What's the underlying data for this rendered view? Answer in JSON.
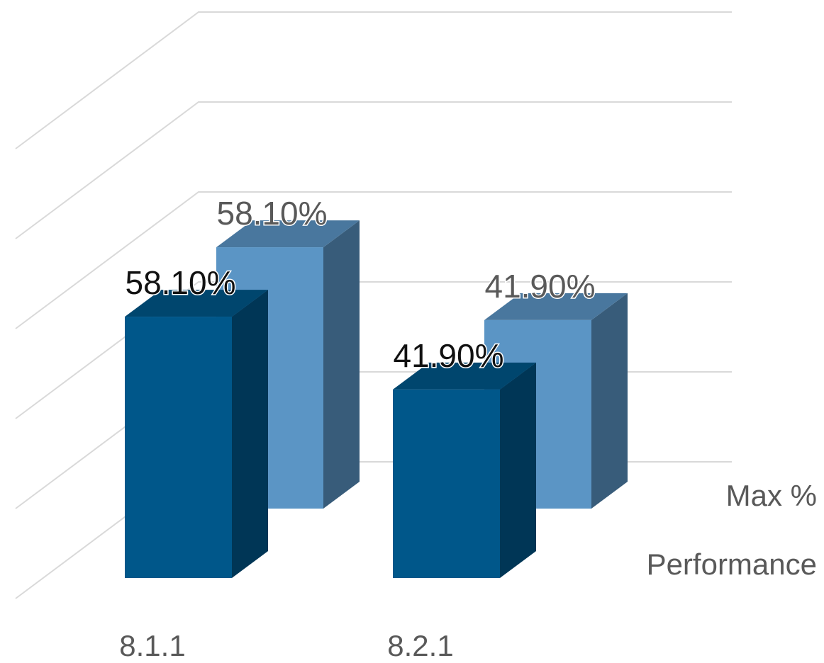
{
  "chart_data": {
    "type": "bar3d",
    "categories": [
      "8.1.1",
      "8.2.1"
    ],
    "series": [
      {
        "name": "Performance",
        "color": "#00578a",
        "values": [
          58.1,
          41.9
        ],
        "value_labels": [
          "58.10%",
          "41.90%"
        ]
      },
      {
        "name": "Max %",
        "color": "#5b95c5",
        "values": [
          58.1,
          41.9
        ],
        "value_labels": [
          "58.10%",
          "41.90%"
        ]
      }
    ],
    "ylim": [
      0,
      100
    ],
    "yticks": [
      0,
      20,
      40,
      60,
      80,
      100
    ],
    "grid": true
  }
}
